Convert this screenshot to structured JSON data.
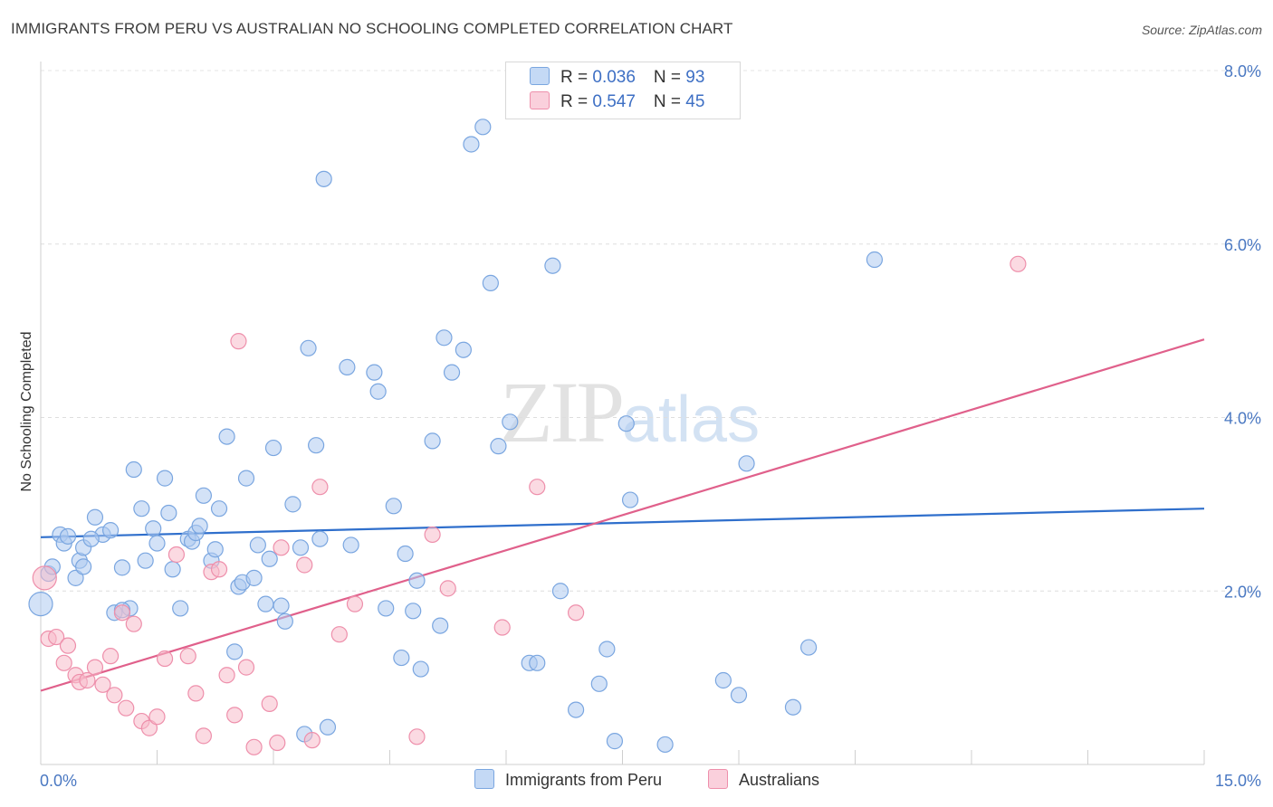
{
  "header": {
    "title": "IMMIGRANTS FROM PERU VS AUSTRALIAN NO SCHOOLING COMPLETED CORRELATION CHART",
    "source": "Source: ZipAtlas.com"
  },
  "watermark": {
    "zip": "ZIP",
    "atlas": "atlas"
  },
  "legend": {
    "series": [
      {
        "r_label": "R = ",
        "r_value": "0.036",
        "n_label": "N = ",
        "n_value": "93",
        "color": "#aecbf0"
      },
      {
        "r_label": "R = ",
        "r_value": "0.547",
        "n_label": "N = ",
        "n_value": "45",
        "color": "#f7bccb"
      }
    ]
  },
  "bottom_legend": {
    "peru": "Immigrants from Peru",
    "australians": "Australians"
  },
  "chart_data": {
    "type": "scatter",
    "xlabel": "",
    "ylabel": "No Schooling Completed",
    "xlim": [
      0,
      15
    ],
    "ylim": [
      0,
      8
    ],
    "x_tick_labels": [
      "0.0%",
      "15.0%"
    ],
    "y_ticks": [
      2,
      4,
      6,
      8
    ],
    "y_tick_labels": [
      "2.0%",
      "4.0%",
      "6.0%",
      "8.0%"
    ],
    "grid": true,
    "legend_position": "top-center",
    "series": [
      {
        "name": "Immigrants from Peru",
        "color": "#7aa6e0",
        "fill": "#aecbf0",
        "trend": {
          "x": [
            0,
            15
          ],
          "y": [
            2.62,
            2.95
          ],
          "color": "#2f6fcc"
        },
        "points": [
          [
            0.0,
            1.85
          ],
          [
            0.1,
            2.2
          ],
          [
            0.15,
            2.28
          ],
          [
            0.25,
            2.65
          ],
          [
            0.3,
            2.55
          ],
          [
            0.35,
            2.63
          ],
          [
            0.45,
            2.15
          ],
          [
            0.5,
            2.35
          ],
          [
            0.55,
            2.5
          ],
          [
            0.7,
            2.85
          ],
          [
            0.8,
            2.65
          ],
          [
            0.9,
            2.7
          ],
          [
            0.65,
            2.6
          ],
          [
            0.95,
            1.75
          ],
          [
            1.05,
            2.27
          ],
          [
            1.15,
            1.8
          ],
          [
            1.2,
            3.4
          ],
          [
            1.3,
            2.95
          ],
          [
            1.35,
            2.35
          ],
          [
            1.45,
            2.72
          ],
          [
            1.5,
            2.55
          ],
          [
            1.6,
            3.3
          ],
          [
            1.65,
            2.9
          ],
          [
            1.7,
            2.25
          ],
          [
            1.8,
            1.8
          ],
          [
            1.9,
            2.6
          ],
          [
            1.95,
            2.57
          ],
          [
            2.0,
            2.67
          ],
          [
            2.05,
            2.75
          ],
          [
            2.1,
            3.1
          ],
          [
            2.2,
            2.35
          ],
          [
            2.25,
            2.48
          ],
          [
            2.3,
            2.95
          ],
          [
            2.4,
            3.78
          ],
          [
            2.5,
            1.3
          ],
          [
            2.55,
            2.05
          ],
          [
            2.6,
            2.1
          ],
          [
            2.65,
            3.3
          ],
          [
            2.75,
            2.15
          ],
          [
            2.8,
            2.53
          ],
          [
            2.9,
            1.85
          ],
          [
            2.95,
            2.37
          ],
          [
            3.0,
            3.65
          ],
          [
            3.1,
            1.83
          ],
          [
            3.15,
            1.65
          ],
          [
            3.25,
            3.0
          ],
          [
            3.35,
            2.5
          ],
          [
            3.4,
            0.35
          ],
          [
            3.45,
            4.8
          ],
          [
            3.55,
            3.68
          ],
          [
            3.6,
            2.6
          ],
          [
            3.65,
            6.75
          ],
          [
            3.7,
            0.43
          ],
          [
            3.95,
            4.58
          ],
          [
            4.0,
            2.53
          ],
          [
            4.3,
            4.52
          ],
          [
            4.35,
            4.3
          ],
          [
            4.45,
            1.8
          ],
          [
            4.55,
            2.98
          ],
          [
            4.65,
            1.23
          ],
          [
            4.7,
            2.43
          ],
          [
            4.8,
            1.77
          ],
          [
            4.85,
            2.12
          ],
          [
            4.9,
            1.1
          ],
          [
            5.05,
            3.73
          ],
          [
            5.15,
            1.6
          ],
          [
            5.2,
            4.92
          ],
          [
            5.3,
            4.52
          ],
          [
            5.45,
            4.78
          ],
          [
            5.55,
            7.15
          ],
          [
            5.7,
            7.35
          ],
          [
            5.8,
            5.55
          ],
          [
            5.9,
            3.67
          ],
          [
            6.05,
            3.95
          ],
          [
            6.3,
            1.17
          ],
          [
            6.4,
            1.17
          ],
          [
            6.6,
            5.75
          ],
          [
            6.7,
            2.0
          ],
          [
            6.9,
            0.63
          ],
          [
            7.2,
            0.93
          ],
          [
            7.3,
            1.33
          ],
          [
            7.4,
            0.27
          ],
          [
            7.55,
            3.93
          ],
          [
            7.6,
            3.05
          ],
          [
            8.05,
            0.23
          ],
          [
            8.8,
            0.97
          ],
          [
            9.0,
            0.8
          ],
          [
            9.1,
            3.47
          ],
          [
            9.7,
            0.66
          ],
          [
            9.9,
            1.35
          ],
          [
            10.75,
            5.82
          ],
          [
            0.55,
            2.28
          ],
          [
            1.05,
            1.78
          ]
        ]
      },
      {
        "name": "Australians",
        "color": "#ee8fab",
        "fill": "#f7bccb",
        "trend": {
          "x": [
            0,
            15
          ],
          "y": [
            0.85,
            4.9
          ],
          "color": "#e0608b"
        },
        "points": [
          [
            0.05,
            2.15
          ],
          [
            0.1,
            1.45
          ],
          [
            0.2,
            1.47
          ],
          [
            0.3,
            1.17
          ],
          [
            0.35,
            1.37
          ],
          [
            0.45,
            1.03
          ],
          [
            0.5,
            0.95
          ],
          [
            0.6,
            0.97
          ],
          [
            0.7,
            1.12
          ],
          [
            0.8,
            0.92
          ],
          [
            0.9,
            1.25
          ],
          [
            0.95,
            0.8
          ],
          [
            1.05,
            1.75
          ],
          [
            1.1,
            0.65
          ],
          [
            1.2,
            1.62
          ],
          [
            1.3,
            0.5
          ],
          [
            1.4,
            0.42
          ],
          [
            1.5,
            0.55
          ],
          [
            1.6,
            1.22
          ],
          [
            1.75,
            2.42
          ],
          [
            1.9,
            1.25
          ],
          [
            2.0,
            0.82
          ],
          [
            2.1,
            0.33
          ],
          [
            2.2,
            2.22
          ],
          [
            2.3,
            2.25
          ],
          [
            2.4,
            1.03
          ],
          [
            2.5,
            0.57
          ],
          [
            2.55,
            4.88
          ],
          [
            2.65,
            1.12
          ],
          [
            2.75,
            0.2
          ],
          [
            2.95,
            0.7
          ],
          [
            3.05,
            0.25
          ],
          [
            3.1,
            2.5
          ],
          [
            3.4,
            2.3
          ],
          [
            3.5,
            0.28
          ],
          [
            3.6,
            3.2
          ],
          [
            3.85,
            1.5
          ],
          [
            4.05,
            1.85
          ],
          [
            4.85,
            0.32
          ],
          [
            5.05,
            2.65
          ],
          [
            5.25,
            2.03
          ],
          [
            5.95,
            1.58
          ],
          [
            6.4,
            3.2
          ],
          [
            6.9,
            1.75
          ],
          [
            12.6,
            5.77
          ]
        ]
      }
    ]
  }
}
